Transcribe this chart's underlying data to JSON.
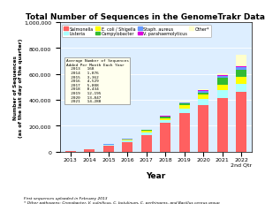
{
  "title": "Total Number of Sequences in the GenomeTrakr Database",
  "xlabel": "Year",
  "ylabel": "Number of Sequences\n(as of the last day of the quarter)",
  "years": [
    "2013",
    "2014",
    "2015",
    "2016",
    "2017",
    "2018",
    "2019",
    "2020",
    "2021",
    "2022\n2nd Qtr"
  ],
  "salmonella": [
    1500,
    18000,
    45000,
    75000,
    130000,
    220000,
    300000,
    360000,
    415000,
    460000
  ],
  "listeria": [
    0,
    1500,
    5000,
    10000,
    18000,
    25000,
    35000,
    50000,
    60000,
    65000
  ],
  "ecoli_shigella": [
    0,
    500,
    3000,
    6000,
    10000,
    15000,
    22000,
    30000,
    40000,
    50000
  ],
  "campylobacter": [
    0,
    300,
    2000,
    4000,
    7000,
    9000,
    13000,
    18000,
    55000,
    60000
  ],
  "staph_aureus": [
    0,
    200,
    800,
    2000,
    3000,
    5000,
    7000,
    10000,
    13000,
    17000
  ],
  "v_parahaemolyticus": [
    0,
    100,
    400,
    800,
    1500,
    2500,
    3500,
    5000,
    7000,
    9000
  ],
  "other": [
    0,
    100,
    300,
    700,
    1500,
    3000,
    5000,
    10000,
    17000,
    85000
  ],
  "colors": {
    "salmonella": "#FF6060",
    "listeria": "#AAFFFF",
    "ecoli_shigella": "#FFFF00",
    "campylobacter": "#33BB33",
    "staph_aureus": "#6699FF",
    "v_parahaemolyticus": "#DD00DD",
    "other": "#FFFFCC"
  },
  "legend_labels": [
    "Salmonella",
    "Listeria",
    "E. coli / Shigella",
    "Campylobacter",
    "Staph. aureus",
    "V. parahaemolyticus",
    "Other*"
  ],
  "avg_table_header1": "Average Number of Sequences",
  "avg_table_header2": "Added Per Month Each Year",
  "avg_rows": [
    [
      "2013",
      "168"
    ],
    [
      "2014",
      "1,876"
    ],
    [
      "2015",
      "3,362"
    ],
    [
      "2016",
      "4,529"
    ],
    [
      "2017",
      "5,808"
    ],
    [
      "2018",
      "8,434"
    ],
    [
      "2019",
      "12,195"
    ],
    [
      "2020",
      "13,847"
    ],
    [
      "2021",
      "14,288"
    ]
  ],
  "footnote1": "First sequences uploaded in February 2013",
  "footnote2": "* Other pathogens: Cronobacter, V. vulnificus, C. botulinum, C. perfringens, and Bacillus cereus group",
  "ylim": [
    0,
    1000000
  ],
  "yticks": [
    0,
    200000,
    400000,
    600000,
    800000,
    1000000
  ],
  "background_color": "#DDEEFF"
}
